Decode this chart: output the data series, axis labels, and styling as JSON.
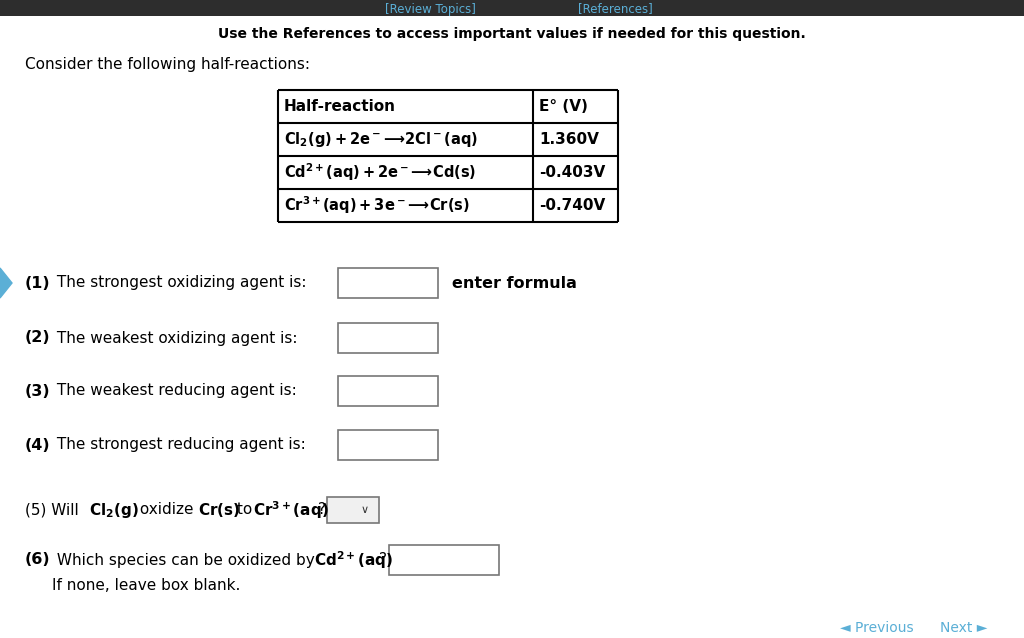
{
  "background_color": "#ffffff",
  "top_bar_color": "#2d2d2d",
  "top_link1": "[Review Topics]",
  "top_link2": "[References]",
  "top_link_color": "#5bafd6",
  "header_text": "Use the References to access important values if needed for this question.",
  "intro_text": "Consider the following half-reactions:",
  "table_col1_header": "Half-reaction",
  "table_col2_header": "E° (V)",
  "table_rows": [
    {
      "col1": "Cl₂(g) + 2e⁻ ⟶ 2Cl⁻(aq)",
      "col2": "1.360V"
    },
    {
      "col1": "Cd²⁺(aq) + 2e⁻ ⟶ Cd(s)",
      "col2": "-0.403V"
    },
    {
      "col1": "Cr³⁺(aq) + 3e⁻ ⟶ Cr(s)",
      "col2": "-0.740V"
    }
  ],
  "q1_label": "(1)",
  "q1_text": " The strongest oxidizing agent is:",
  "q1_note": "enter formula",
  "q2_label": "(2)",
  "q2_text": " The weakest oxidizing agent is:",
  "q3_label": "(3)",
  "q3_text": " The weakest reducing agent is:",
  "q4_label": "(4)",
  "q4_text": " The strongest reducing agent is:",
  "q5_prefix": "(5) Will ",
  "q5_cl2": "Cl₂(g)",
  "q5_mid": " oxidize ",
  "q5_crs": "Cr(s)",
  "q5_to": " to ",
  "q5_cr3": "Cr³⁺(aq)",
  "q5_end": "?",
  "q6_label": "(6)",
  "q6_text": " Which species can be oxidized by ",
  "q6_cd": "Cd²⁺(aq)",
  "q6_end": "?",
  "q6_sub": "    If none, leave box blank.",
  "footer_prev": "◄ Previous",
  "footer_next": "Next ►",
  "footer_color": "#5bafd6",
  "left_nav_color": "#5bafd6"
}
